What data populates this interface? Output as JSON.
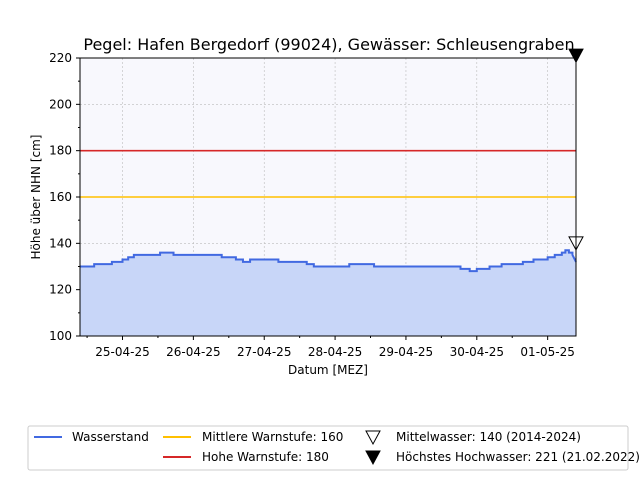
{
  "chart_data": {
    "type": "line",
    "title": "Pegel:  Hafen Bergedorf (99024), Gewässer:  Schleusengraben",
    "xlabel": "Datum [MEZ]",
    "ylabel": "Höhe über NHN [cm]",
    "ylim": [
      100,
      220
    ],
    "xlim": [
      -0.1,
      6.9
    ],
    "yticks": [
      100,
      120,
      140,
      160,
      180,
      200,
      220
    ],
    "xticks": [
      {
        "x": 0.5,
        "label": "25-04-25"
      },
      {
        "x": 1.5,
        "label": "26-04-25"
      },
      {
        "x": 2.5,
        "label": "27-04-25"
      },
      {
        "x": 3.5,
        "label": "28-04-25"
      },
      {
        "x": 4.5,
        "label": "29-04-25"
      },
      {
        "x": 5.5,
        "label": "30-04-25"
      },
      {
        "x": 6.5,
        "label": "01-05-25"
      }
    ],
    "grid": true,
    "legend_position": "bottom",
    "colors": {
      "plot_bg": "#f8f8fd",
      "water": "#4169e1",
      "fill": "#c8d6f8",
      "warn_mid": "#ffc000",
      "warn_high": "#d62728"
    },
    "series": [
      {
        "name": "Wasserstand",
        "x": [
          -0.1,
          0.1,
          0.1,
          0.35,
          0.35,
          0.5,
          0.5,
          0.58,
          0.58,
          0.66,
          0.66,
          1.03,
          1.03,
          1.22,
          1.22,
          1.9,
          1.9,
          2.1,
          2.1,
          2.2,
          2.2,
          2.3,
          2.3,
          2.7,
          2.7,
          3.1,
          3.1,
          3.2,
          3.2,
          3.3,
          3.3,
          3.7,
          3.7,
          4.05,
          4.05,
          4.35,
          4.35,
          5.27,
          5.27,
          5.4,
          5.4,
          5.5,
          5.5,
          5.68,
          5.68,
          5.85,
          5.85,
          6.15,
          6.15,
          6.3,
          6.3,
          6.5,
          6.5,
          6.6,
          6.6,
          6.7,
          6.7,
          6.75,
          6.75,
          6.8,
          6.8,
          6.85,
          6.85,
          6.9
        ],
        "values": [
          130,
          130,
          131,
          131,
          132,
          132,
          133,
          133,
          134,
          134,
          135,
          135,
          136,
          136,
          135,
          135,
          134,
          134,
          133,
          133,
          132,
          132,
          133,
          133,
          132,
          132,
          131,
          131,
          130,
          130,
          130,
          130,
          131,
          131,
          130,
          130,
          130,
          130,
          129,
          129,
          128,
          128,
          129,
          129,
          130,
          130,
          131,
          131,
          132,
          132,
          133,
          133,
          134,
          134,
          135,
          135,
          136,
          136,
          137,
          137,
          136,
          136,
          135,
          132
        ]
      },
      {
        "name": "Mittlere Warnstufe: 160",
        "value": 160
      },
      {
        "name": "Hohe Warnstufe: 180",
        "value": 180
      }
    ],
    "markers": [
      {
        "name": "Mittelwasser: 140 (2014-2024)",
        "value": 140,
        "x": 6.9,
        "symbol": "triangle-down-open"
      },
      {
        "name": "Höchstes Hochwasser: 221 (21.02.2022)",
        "value": 221,
        "x": 6.9,
        "symbol": "triangle-down-filled"
      }
    ]
  }
}
